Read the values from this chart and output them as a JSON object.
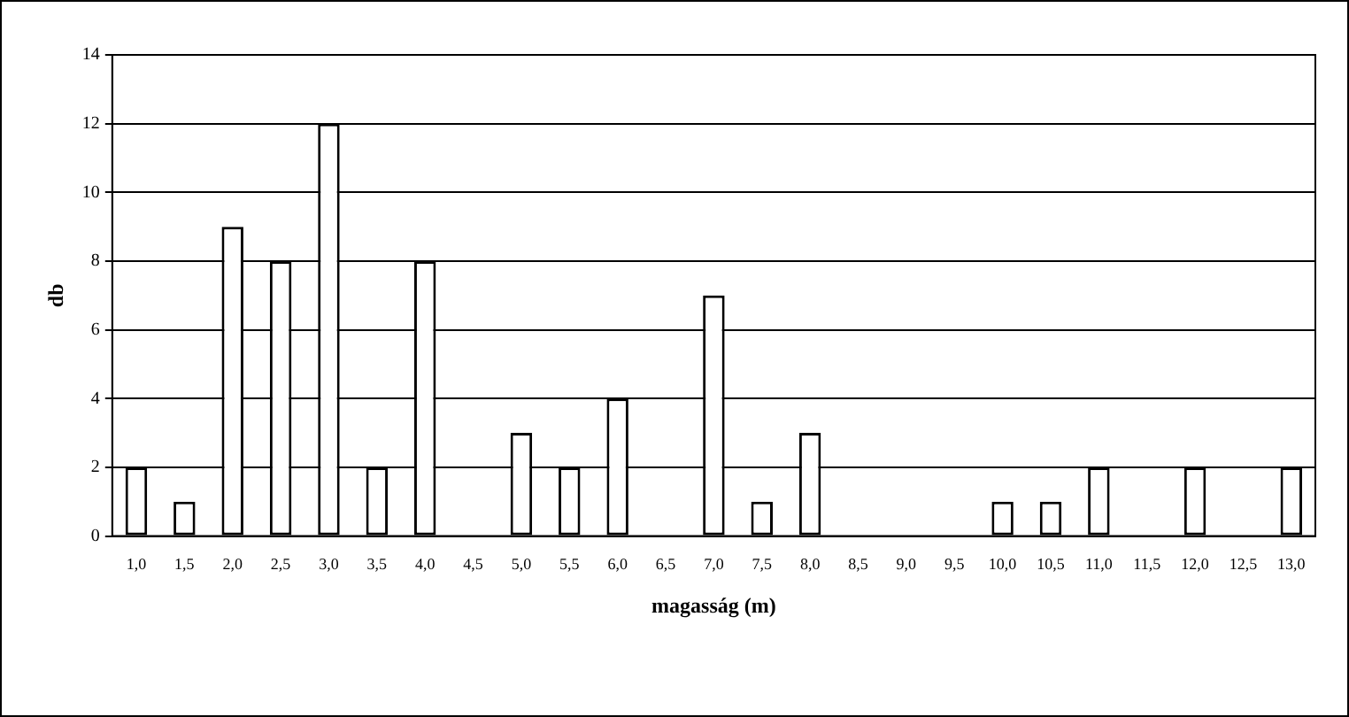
{
  "chart_data": {
    "type": "bar",
    "xlabel": "magasság (m)",
    "ylabel": "db",
    "categories": [
      "1,0",
      "1,5",
      "2,0",
      "2,5",
      "3,0",
      "3,5",
      "4,0",
      "4,5",
      "5,0",
      "5,5",
      "6,0",
      "6,5",
      "7,0",
      "7,5",
      "8,0",
      "8,5",
      "9,0",
      "9,5",
      "10,0",
      "10,5",
      "11,0",
      "11,5",
      "12,0",
      "12,5",
      "13,0"
    ],
    "values": [
      2,
      1,
      9,
      8,
      12,
      2,
      8,
      0,
      3,
      2,
      4,
      0,
      7,
      1,
      3,
      0,
      0,
      0,
      1,
      1,
      2,
      0,
      2,
      0,
      2
    ],
    "color": "#ffffff",
    "ylim": [
      0,
      14
    ],
    "yticks": [
      0,
      2,
      4,
      6,
      8,
      10,
      12,
      14
    ],
    "grid": "y",
    "legend": false
  }
}
